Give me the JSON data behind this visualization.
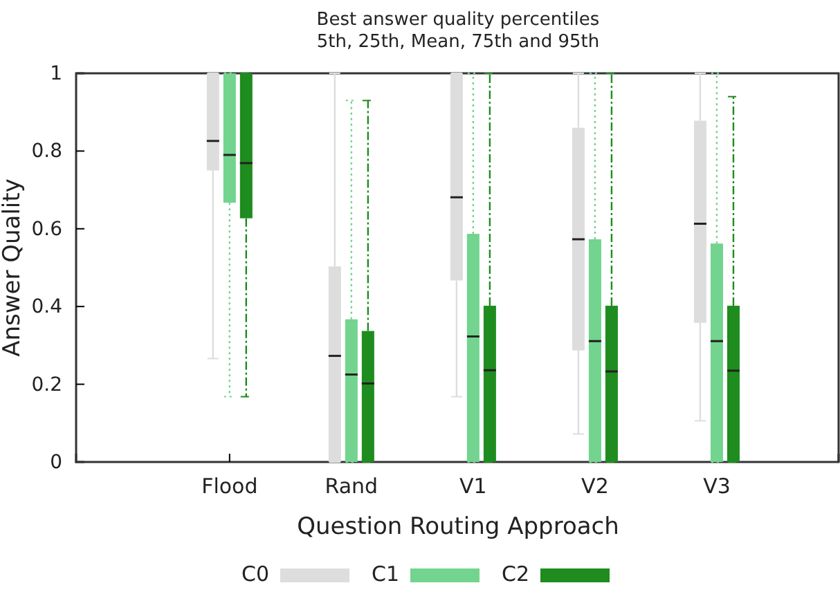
{
  "chart_data": {
    "type": "box",
    "title": "Best answer quality percentiles\n5th, 25th, Mean, 75th and 95th",
    "xlabel": "Question Routing Approach",
    "ylabel": "Answer Quality",
    "categories": [
      "Flood",
      "Rand",
      "V1",
      "V2",
      "V3"
    ],
    "ylim": [
      0,
      1
    ],
    "yticks": [
      0,
      0.2,
      0.4,
      0.6,
      0.8,
      1
    ],
    "legend": "bottom",
    "grid": false,
    "series": [
      {
        "name": "C0",
        "color": "#dddddd",
        "line_style": "solid",
        "boxes": [
          {
            "low": 0.266,
            "q1": 0.75,
            "median": 0.826,
            "q3": 1,
            "high": 1
          },
          {
            "low": 0,
            "q1": 0,
            "median": 0.273,
            "q3": 0.503,
            "high": 1
          },
          {
            "low": 0.168,
            "q1": 0.467,
            "median": 0.681,
            "q3": 1,
            "high": 1
          },
          {
            "low": 0.072,
            "q1": 0.287,
            "median": 0.573,
            "q3": 0.86,
            "high": 1
          },
          {
            "low": 0.106,
            "q1": 0.358,
            "median": 0.613,
            "q3": 0.878,
            "high": 1
          }
        ]
      },
      {
        "name": "C1",
        "color": "#72d48e",
        "line_style": "dotted",
        "boxes": [
          {
            "low": 0.168,
            "q1": 0.667,
            "median": 0.79,
            "q3": 1,
            "high": 1
          },
          {
            "low": 0,
            "q1": 0,
            "median": 0.225,
            "q3": 0.367,
            "high": 0.93
          },
          {
            "low": 0,
            "q1": 0,
            "median": 0.323,
            "q3": 0.587,
            "high": 1
          },
          {
            "low": 0,
            "q1": 0,
            "median": 0.311,
            "q3": 0.573,
            "high": 1
          },
          {
            "low": 0,
            "q1": 0,
            "median": 0.311,
            "q3": 0.562,
            "high": 1
          }
        ]
      },
      {
        "name": "C2",
        "color": "#1e8c1e",
        "line_style": "dashed",
        "boxes": [
          {
            "low": 0.168,
            "q1": 0.627,
            "median": 0.769,
            "q3": 1,
            "high": 1
          },
          {
            "low": 0,
            "q1": 0,
            "median": 0.202,
            "q3": 0.337,
            "high": 0.93
          },
          {
            "low": 0,
            "q1": 0,
            "median": 0.236,
            "q3": 0.402,
            "high": 1
          },
          {
            "low": 0,
            "q1": 0,
            "median": 0.233,
            "q3": 0.402,
            "high": 1
          },
          {
            "low": 0,
            "q1": 0,
            "median": 0.235,
            "q3": 0.402,
            "high": 0.94
          }
        ]
      }
    ]
  }
}
